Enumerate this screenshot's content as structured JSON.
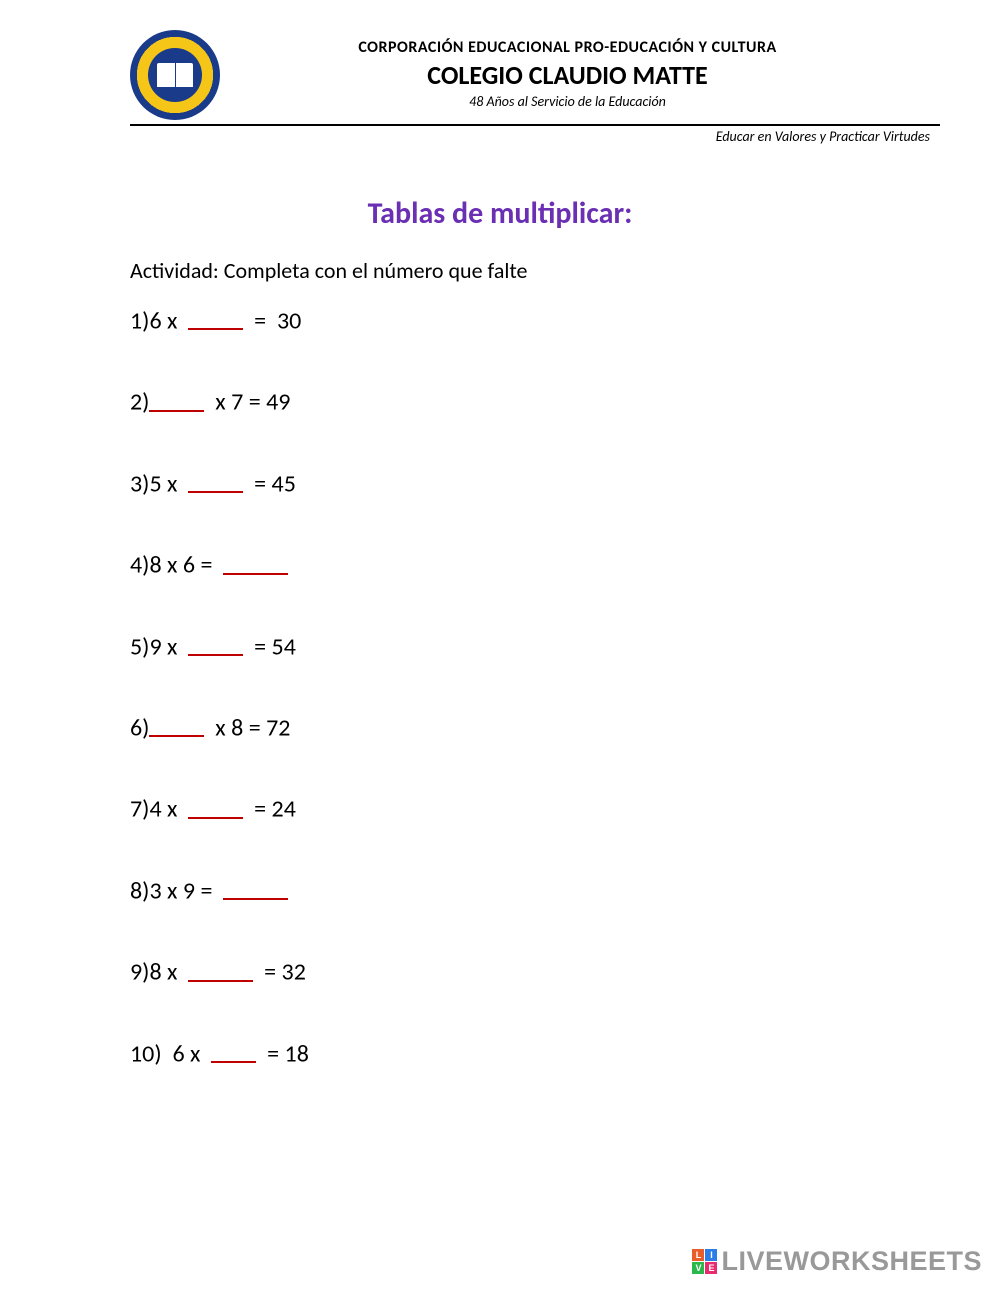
{
  "header": {
    "org_name": "CORPORACIÓN EDUCACIONAL PRO-EDUCACIÓN Y CULTURA",
    "school_name": "COLEGIO CLAUDIO MATTE",
    "tagline": "48 Años al Servicio de la Educación",
    "motto": "Educar en Valores y Practicar Virtudes",
    "logo_colors": {
      "outer": "#1a3a8a",
      "inner": "#f5c518"
    }
  },
  "worksheet": {
    "title": "Tablas de multiplicar:",
    "title_color": "#6b2fb3",
    "instructions": "Actividad: Completa con el número que falte",
    "blank_underline_color": "#c00000",
    "problems": [
      {
        "num": "1)",
        "before": "6 x  ",
        "blank_w": "w55",
        "after": "  =  30"
      },
      {
        "num": "2)",
        "before": "",
        "blank_w": "w55",
        "after": "  x 7 = 49"
      },
      {
        "num": "3)",
        "before": "5 x  ",
        "blank_w": "w55",
        "after": "  = 45"
      },
      {
        "num": "4)",
        "before": "8 x 6 =  ",
        "blank_w": "w65",
        "after": ""
      },
      {
        "num": "5)",
        "before": "9 x  ",
        "blank_w": "w55",
        "after": "  = 54"
      },
      {
        "num": "6)",
        "before": "",
        "blank_w": "w55",
        "after": "  x 8 = 72"
      },
      {
        "num": "7)",
        "before": "4 x  ",
        "blank_w": "w55",
        "after": "  = 24"
      },
      {
        "num": "8)",
        "before": "3 x 9 =  ",
        "blank_w": "w65",
        "after": ""
      },
      {
        "num": "9)",
        "before": "8 x  ",
        "blank_w": "w65",
        "after": "  = 32"
      },
      {
        "num": "10)",
        "before": "  6 x  ",
        "blank_w": "w45",
        "after": "  = 18"
      }
    ]
  },
  "watermark": {
    "text": "LIVEWORKSHEETS",
    "badge": [
      {
        "letter": "L",
        "bg": "#e85d2b"
      },
      {
        "letter": "I",
        "bg": "#2b7de8"
      },
      {
        "letter": "V",
        "bg": "#2bb84a"
      },
      {
        "letter": "E",
        "bg": "#e82b6f"
      }
    ]
  }
}
